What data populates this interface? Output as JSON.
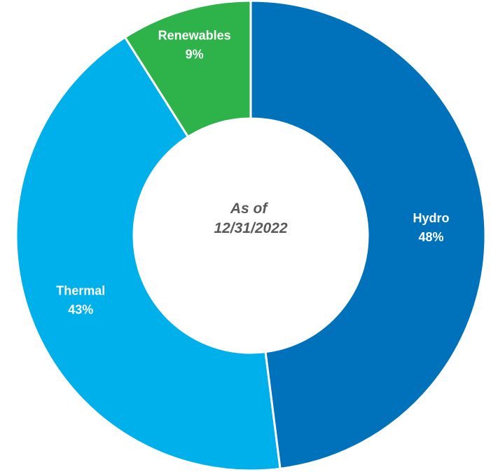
{
  "chart_data": {
    "type": "pie",
    "style": "donut",
    "center_text": [
      "As of",
      "12/31/2022"
    ],
    "slices": [
      {
        "name": "Hydro",
        "value": 48,
        "value_label": "48%",
        "color": "#0072BC"
      },
      {
        "name": "Thermal",
        "value": 43,
        "value_label": "43%",
        "color": "#00B0EA"
      },
      {
        "name": "Renewables",
        "value": 9,
        "value_label": "9%",
        "color": "#2DB34A"
      }
    ]
  }
}
